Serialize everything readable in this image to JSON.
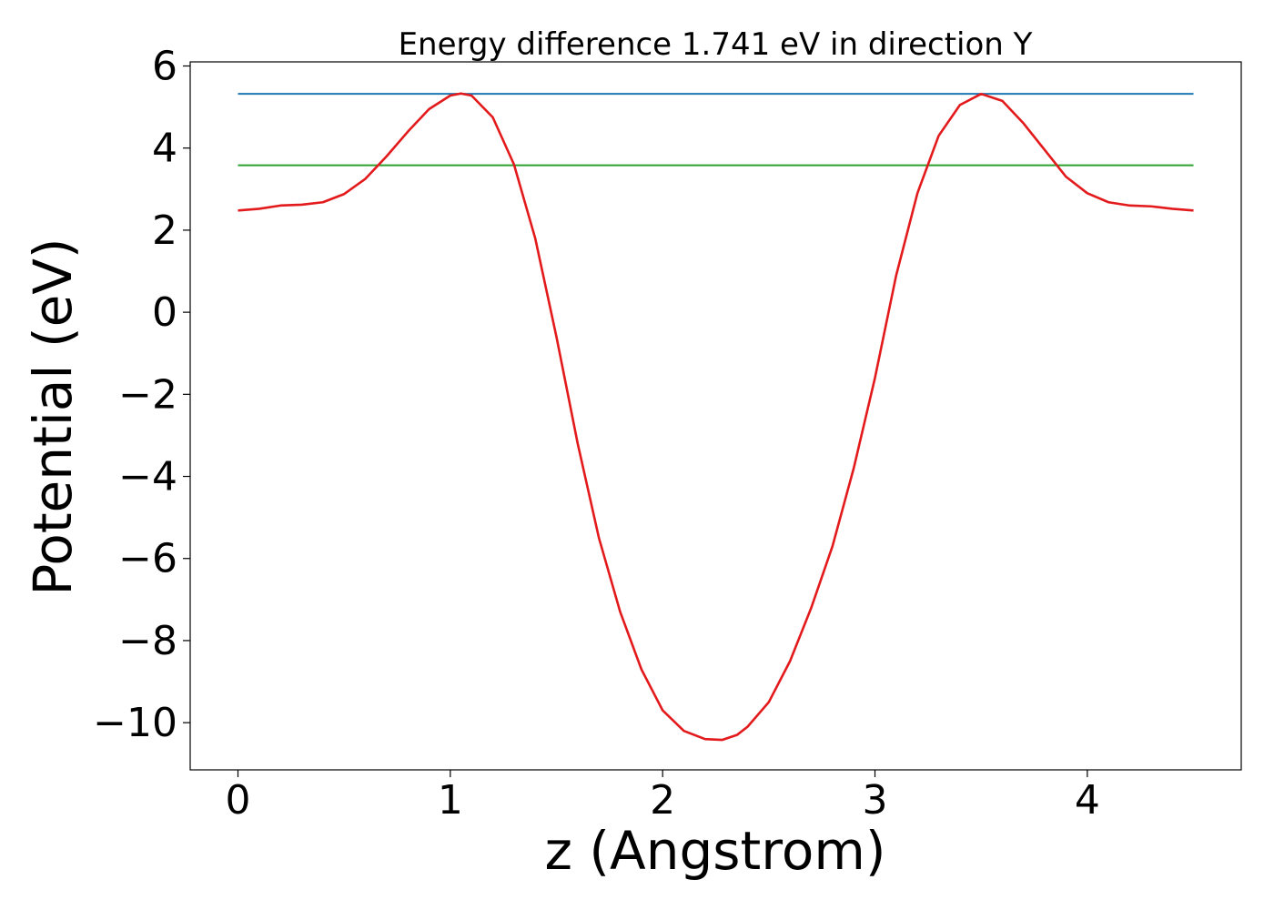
{
  "chart_data": {
    "type": "line",
    "title": "Energy difference 1.741 eV in direction Y",
    "xlabel": "z (Angstrom)",
    "ylabel": "Potential (eV)",
    "xlim": [
      -0.225,
      4.725
    ],
    "ylim": [
      -11.15,
      6.1
    ],
    "xticks": [
      0,
      1,
      2,
      3,
      4
    ],
    "xtick_labels": [
      "0",
      "1",
      "2",
      "3",
      "4"
    ],
    "yticks": [
      6,
      4,
      2,
      0,
      -2,
      -4,
      -6,
      -8,
      -10
    ],
    "ytick_labels": [
      "6",
      "4",
      "2",
      "0",
      "−2",
      "−4",
      "−6",
      "−8",
      "−10"
    ],
    "grid": false,
    "series": [
      {
        "color": "#1f77b4",
        "x": [
          0,
          4.5
        ],
        "y": [
          5.32,
          5.32
        ]
      },
      {
        "color": "#2ca02c",
        "x": [
          0,
          4.5
        ],
        "y": [
          3.58,
          3.58
        ]
      },
      {
        "color": "#e31a1c",
        "x": [
          0,
          0.1,
          0.2,
          0.3,
          0.4,
          0.5,
          0.6,
          0.7,
          0.8,
          0.9,
          1.0,
          1.05,
          1.1,
          1.2,
          1.3,
          1.4,
          1.5,
          1.6,
          1.7,
          1.8,
          1.9,
          2.0,
          2.1,
          2.2,
          2.28,
          2.35,
          2.4,
          2.5,
          2.6,
          2.7,
          2.8,
          2.9,
          3.0,
          3.1,
          3.2,
          3.3,
          3.4,
          3.5,
          3.6,
          3.7,
          3.8,
          3.9,
          4.0,
          4.1,
          4.2,
          4.3,
          4.4,
          4.5
        ],
        "y": [
          2.48,
          2.52,
          2.6,
          2.62,
          2.68,
          2.88,
          3.25,
          3.8,
          4.4,
          4.95,
          5.28,
          5.33,
          5.28,
          4.75,
          3.6,
          1.8,
          -0.6,
          -3.2,
          -5.5,
          -7.3,
          -8.7,
          -9.7,
          -10.2,
          -10.4,
          -10.42,
          -10.3,
          -10.1,
          -9.5,
          -8.5,
          -7.2,
          -5.7,
          -3.8,
          -1.6,
          0.9,
          2.9,
          4.3,
          5.05,
          5.32,
          5.15,
          4.6,
          3.95,
          3.3,
          2.9,
          2.68,
          2.6,
          2.58,
          2.52,
          2.48
        ]
      }
    ]
  }
}
